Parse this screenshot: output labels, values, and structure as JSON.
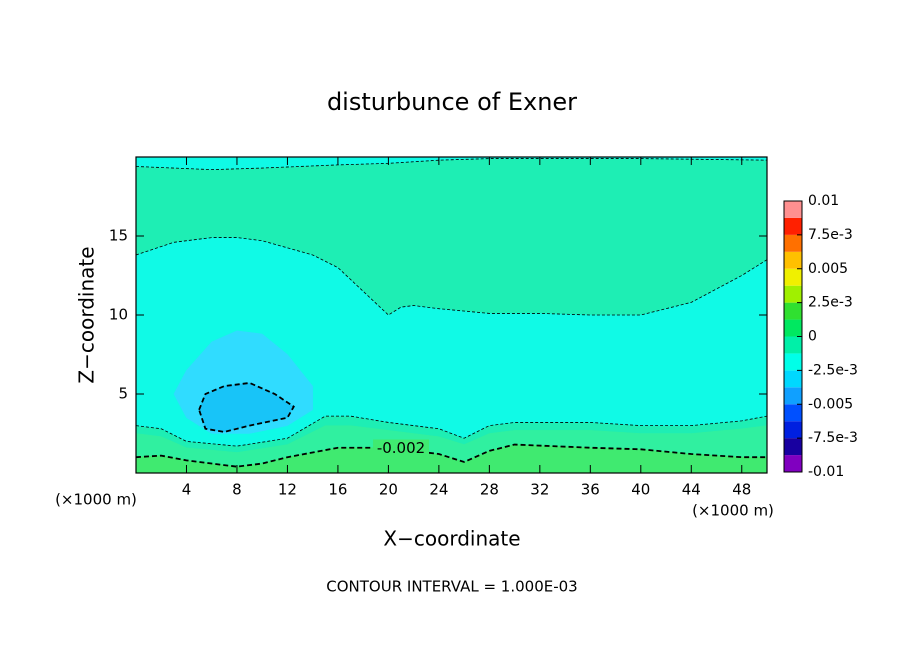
{
  "chart_data": {
    "type": "contour",
    "title": "disturbunce of Exner",
    "xlabel": "X−coordinate",
    "ylabel": "Z−coordinate",
    "xunit": "(×1000 m)",
    "yunit": "(×1000 m)",
    "footer": "CONTOUR INTERVAL = 1.000E-03",
    "xlim": [
      0,
      50
    ],
    "ylim": [
      0,
      20
    ],
    "xticks": [
      4,
      8,
      12,
      16,
      20,
      24,
      28,
      32,
      36,
      40,
      44,
      48
    ],
    "yticks": [
      5,
      10,
      15
    ],
    "regions": [
      {
        "color": "#1eeeb4",
        "x": [
          0,
          50,
          50,
          0
        ],
        "z": [
          0,
          0,
          20,
          20
        ]
      },
      {
        "color": "#10fae6",
        "x": [
          0,
          6,
          10,
          16,
          20,
          24,
          28,
          40,
          50,
          50,
          0
        ],
        "z": [
          19.4,
          19.2,
          19.3,
          19.5,
          19.6,
          19.8,
          19.9,
          19.9,
          19.8,
          20,
          20
        ]
      },
      {
        "color": "#10fae6",
        "x": [
          0,
          3,
          6,
          8,
          10,
          14,
          16,
          18,
          20,
          21,
          22,
          24,
          28,
          32,
          36,
          40,
          44,
          48,
          50,
          50,
          48,
          44,
          40,
          36,
          30,
          28,
          26,
          24,
          20,
          17,
          15,
          12,
          8,
          4,
          2,
          0
        ],
        "z": [
          13.8,
          14.6,
          14.9,
          14.9,
          14.7,
          13.8,
          13,
          11.5,
          10,
          10.5,
          10.6,
          10.4,
          10.1,
          10.1,
          10,
          10,
          10.8,
          12.5,
          13.5,
          3.6,
          3.3,
          3,
          3,
          3.2,
          3.2,
          3,
          2.2,
          2.8,
          3.2,
          3.6,
          3.6,
          2.2,
          1.7,
          2,
          2.8,
          3
        ]
      },
      {
        "color": "#30f0a0",
        "x": [
          0,
          2,
          4,
          8,
          12,
          15,
          17,
          20,
          24,
          26,
          28,
          30,
          36,
          40,
          44,
          48,
          50,
          50,
          0
        ],
        "z": [
          2.5,
          2.3,
          1.6,
          1.3,
          1.8,
          3,
          3,
          2.7,
          2.3,
          1.8,
          2.5,
          2.7,
          2.7,
          2.5,
          2.5,
          2.8,
          3,
          0,
          0
        ]
      },
      {
        "color": "#40ea70",
        "x": [
          0,
          2,
          4,
          6,
          8,
          10,
          12,
          16,
          20,
          24,
          26,
          28,
          30,
          36,
          40,
          44,
          48,
          50,
          50,
          0
        ],
        "z": [
          1,
          1.1,
          0.8,
          0.6,
          0.4,
          0.6,
          1,
          1.6,
          1.6,
          1.2,
          0.7,
          1.4,
          1.8,
          1.6,
          1.5,
          1.2,
          1,
          1,
          0,
          0
        ]
      },
      {
        "color": "#30dcff",
        "x": [
          3,
          4,
          6,
          8,
          10,
          12,
          14,
          14,
          12,
          9,
          6,
          4
        ],
        "z": [
          5,
          6.5,
          8.3,
          9,
          8.8,
          7.5,
          5.5,
          4,
          3,
          2.5,
          2.5,
          3.5
        ]
      },
      {
        "color": "#18c4f8",
        "x": [
          5,
          5.5,
          7,
          9,
          11,
          12.5,
          12,
          9,
          7,
          5.5
        ],
        "z": [
          4,
          5,
          5.5,
          5.7,
          5,
          4.2,
          3.5,
          3,
          2.6,
          2.8
        ]
      }
    ],
    "lines": [
      {
        "bold": false,
        "x": [
          0,
          6,
          10,
          16,
          20,
          24,
          28,
          40,
          50
        ],
        "z": [
          19.4,
          19.2,
          19.3,
          19.5,
          19.6,
          19.8,
          19.9,
          19.9,
          19.8
        ]
      },
      {
        "bold": false,
        "x": [
          0,
          3,
          6,
          8,
          10,
          14,
          16,
          18,
          20,
          21,
          22,
          24,
          28,
          32,
          36,
          40,
          44,
          48,
          50
        ],
        "z": [
          13.8,
          14.6,
          14.9,
          14.9,
          14.7,
          13.8,
          13,
          11.5,
          10,
          10.5,
          10.6,
          10.4,
          10.1,
          10.1,
          10,
          10,
          10.8,
          12.5,
          13.5
        ]
      },
      {
        "bold": false,
        "x": [
          0,
          2,
          4,
          8,
          12,
          15,
          17,
          20,
          24,
          26,
          28,
          30,
          36,
          40,
          44,
          48,
          50
        ],
        "z": [
          3,
          2.8,
          2,
          1.7,
          2.2,
          3.6,
          3.6,
          3.2,
          2.8,
          2.2,
          3,
          3.2,
          3.2,
          3,
          3,
          3.3,
          3.6
        ]
      },
      {
        "bold": true,
        "x": [
          0,
          2,
          4,
          6,
          8,
          10,
          12,
          16,
          20,
          24,
          26,
          28,
          30,
          36,
          40,
          44,
          48,
          50
        ],
        "z": [
          1,
          1.1,
          0.8,
          0.6,
          0.4,
          0.6,
          1,
          1.6,
          1.6,
          1.2,
          0.7,
          1.4,
          1.8,
          1.6,
          1.5,
          1.2,
          1,
          1
        ]
      },
      {
        "bold": true,
        "x": [
          5,
          5.5,
          7,
          9,
          11,
          12.5,
          12,
          9,
          7,
          5.5,
          5
        ],
        "z": [
          4,
          5,
          5.5,
          5.7,
          5,
          4.2,
          3.5,
          3,
          2.6,
          2.8,
          4
        ]
      }
    ],
    "contour_labels": [
      {
        "value": -0.002,
        "x": 21,
        "z": 1.55
      }
    ],
    "colorbar": {
      "lim": [
        -0.01,
        0.01
      ],
      "ticks": [
        0.01,
        {
          "value": 0.0075,
          "label": "7.5e-3"
        },
        0.005,
        {
          "value": 0.0025,
          "label": "2.5e-3"
        },
        0,
        {
          "value": -0.0025,
          "label": "-2.5e-3"
        },
        -0.005,
        {
          "value": -0.0075,
          "label": "-7.5e-3"
        },
        -0.01
      ],
      "colors": [
        "#8000c0",
        "#1800a0",
        "#0020e0",
        "#0050ff",
        "#10a0ff",
        "#00d8ff",
        "#00ffe8",
        "#00f0a8",
        "#00e860",
        "#30e030",
        "#a0f000",
        "#f0f000",
        "#ffc000",
        "#ff7000",
        "#ff2000",
        "#ff9090"
      ]
    }
  }
}
